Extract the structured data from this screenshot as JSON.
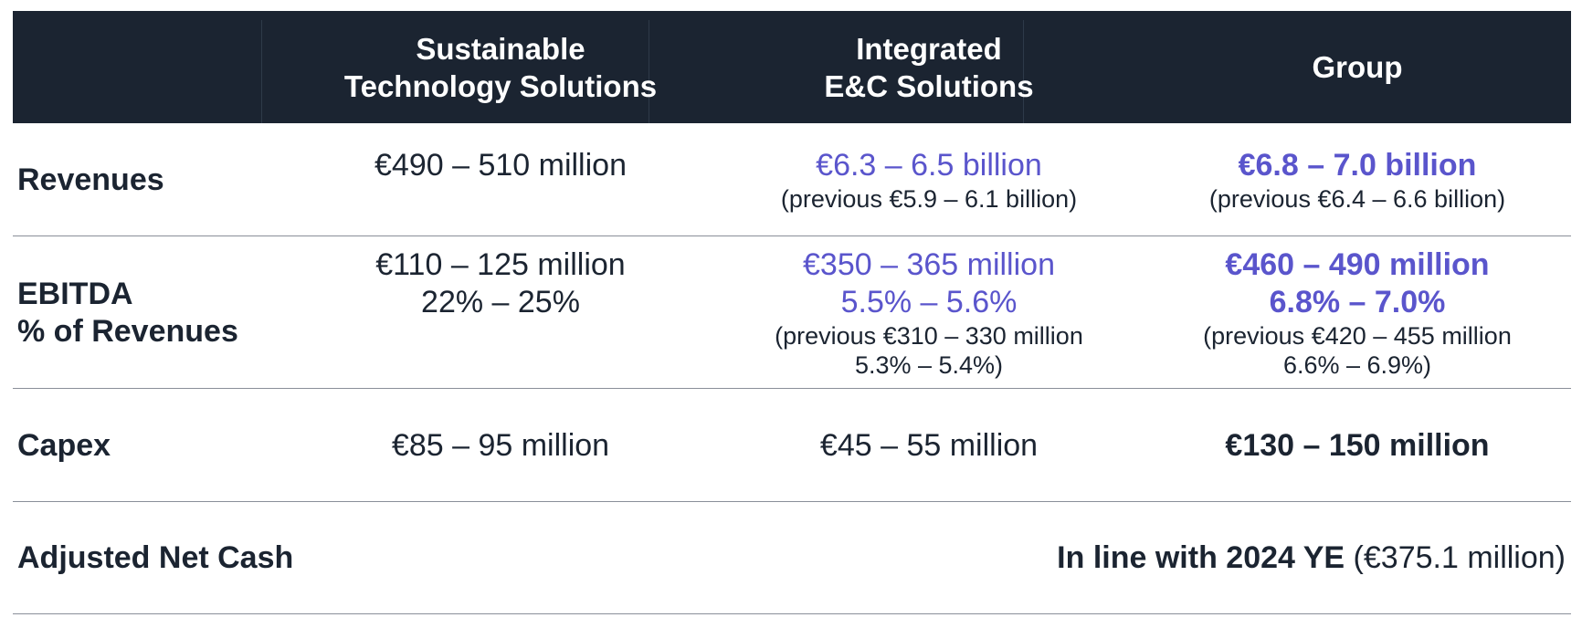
{
  "header": {
    "col1": [
      "Sustainable",
      "Technology Solutions"
    ],
    "col2": [
      "Integrated",
      "E&C Solutions"
    ],
    "col3": "Group"
  },
  "rows": {
    "revenues": {
      "label": "Revenues",
      "sts": "€490 – 510 million",
      "iec_main": "€6.3 – 6.5 billion",
      "iec_prev": "(previous €5.9 – 6.1 billion)",
      "group_main": "€6.8 – 7.0 billion",
      "group_prev": "(previous €6.4 – 6.6 billion)"
    },
    "ebitda": {
      "label_line1": "EBITDA",
      "label_line2": "% of Revenues",
      "sts_line1": "€110 – 125 million",
      "sts_line2": "22% – 25%",
      "iec_line1": "€350 – 365 million",
      "iec_line2": "5.5% – 5.6%",
      "iec_prev1": "(previous €310 – 330 million",
      "iec_prev2": "5.3% – 5.4%)",
      "group_line1": "€460 – 490 million",
      "group_line2": "6.8% – 7.0%",
      "group_prev1": "(previous €420 – 455 million",
      "group_prev2": "6.6% – 6.9%)"
    },
    "capex": {
      "label": "Capex",
      "sts": "€85 – 95 million",
      "iec": "€45 – 55 million",
      "group": "€130 – 150 million"
    },
    "net_cash": {
      "label": "Adjusted Net Cash",
      "value_bold": "In line with 2024 YE",
      "value_rest": " (€375.1 million)"
    }
  },
  "colors": {
    "header_bg": "#1b2431",
    "accent_purple": "#5a55cc",
    "text_dark": "#1b2431"
  }
}
